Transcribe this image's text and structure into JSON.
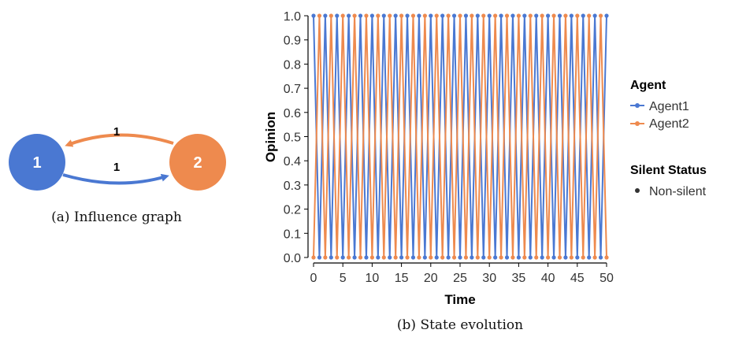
{
  "graph": {
    "caption": "(a) Influence graph",
    "nodes": [
      {
        "label": "1",
        "color": "#4a78d2"
      },
      {
        "label": "2",
        "color": "#ee8a4e"
      }
    ],
    "edges": [
      {
        "from": "2",
        "to": "1",
        "weight": "1",
        "color": "#ee8a4e"
      },
      {
        "from": "1",
        "to": "2",
        "weight": "1",
        "color": "#4a78d2"
      }
    ]
  },
  "colors": {
    "agent1": "#4a78d2",
    "agent2": "#ee8a4e",
    "axis": "#000000",
    "tick_text": "#333333"
  },
  "legend": {
    "agent_title": "Agent",
    "agent_items": [
      "Agent1",
      "Agent2"
    ],
    "silent_title": "Silent Status",
    "silent_items": [
      "Non-silent"
    ]
  },
  "chart_data": {
    "type": "line",
    "caption": "(b) State evolution",
    "xlabel": "Time",
    "ylabel": "Opinion",
    "xlim": [
      0,
      50
    ],
    "ylim": [
      0,
      1
    ],
    "xticks": [
      "0",
      "5",
      "10",
      "15",
      "20",
      "25",
      "30",
      "35",
      "40",
      "45",
      "50"
    ],
    "yticks": [
      "0.0",
      "0.1",
      "0.2",
      "0.3",
      "0.4",
      "0.5",
      "0.6",
      "0.7",
      "0.8",
      "0.9",
      "1.0"
    ],
    "grid": false,
    "legend_position": "right",
    "series": [
      {
        "name": "Agent1",
        "pattern": "alternating",
        "start_value": 1,
        "alt_value": 0,
        "t_start": 0,
        "t_end": 50
      },
      {
        "name": "Agent2",
        "pattern": "alternating",
        "start_value": 0,
        "alt_value": 1,
        "t_start": 0,
        "t_end": 50
      }
    ]
  }
}
